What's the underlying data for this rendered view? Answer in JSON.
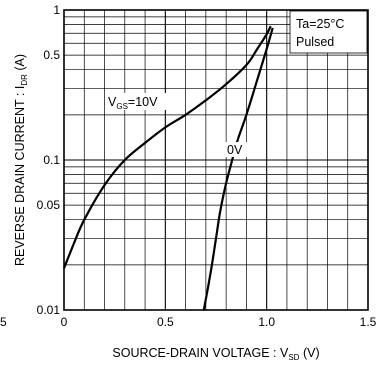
{
  "chart_data": {
    "type": "line",
    "title": "",
    "xlabel": {
      "main": "SOURCE-DRAIN VOLTAGE : V",
      "sub": "SD",
      "unit": " (V)"
    },
    "ylabel": {
      "main": "REVERSE DRAIN CURRENT : I",
      "sub": "DR",
      "unit": " (A)"
    },
    "xlim": [
      0,
      1.5
    ],
    "ylim": [
      0.01,
      1
    ],
    "yscale": "log",
    "grid": true,
    "x_ticks": [
      {
        "value": 0,
        "label": "0"
      },
      {
        "value": 0.5,
        "label": "0.5"
      },
      {
        "value": 1.0,
        "label": "1.0"
      },
      {
        "value": 1.5,
        "label": "1.5"
      }
    ],
    "y_ticks": [
      {
        "value": 0.01,
        "label": "0.01"
      },
      {
        "value": 0.05,
        "label": "0.05"
      },
      {
        "value": 0.1,
        "label": "0.1"
      },
      {
        "value": 0.5,
        "label": "0.5"
      },
      {
        "value": 1,
        "label": "1"
      }
    ],
    "stray_tick_label": "5",
    "conditions": [
      "Ta=25°C",
      "Pulsed"
    ],
    "series": [
      {
        "name": "VGS=10V",
        "label_main": "V",
        "label_sub": "GS",
        "label_tail": "=10V",
        "x": [
          0.0,
          0.05,
          0.1,
          0.2,
          0.3,
          0.4,
          0.5,
          0.6,
          0.7,
          0.8,
          0.9,
          0.95,
          1.0,
          1.02
        ],
        "y": [
          0.019,
          0.028,
          0.04,
          0.068,
          0.1,
          0.13,
          0.165,
          0.2,
          0.25,
          0.32,
          0.43,
          0.54,
          0.69,
          0.78
        ]
      },
      {
        "name": "0V",
        "label_main": "0V",
        "x": [
          0.69,
          0.71,
          0.73,
          0.75,
          0.77,
          0.8,
          0.83,
          0.86,
          0.9,
          0.95,
          1.0,
          1.03
        ],
        "y": [
          0.01,
          0.014,
          0.02,
          0.03,
          0.045,
          0.07,
          0.1,
          0.14,
          0.2,
          0.33,
          0.55,
          0.76
        ]
      }
    ]
  }
}
